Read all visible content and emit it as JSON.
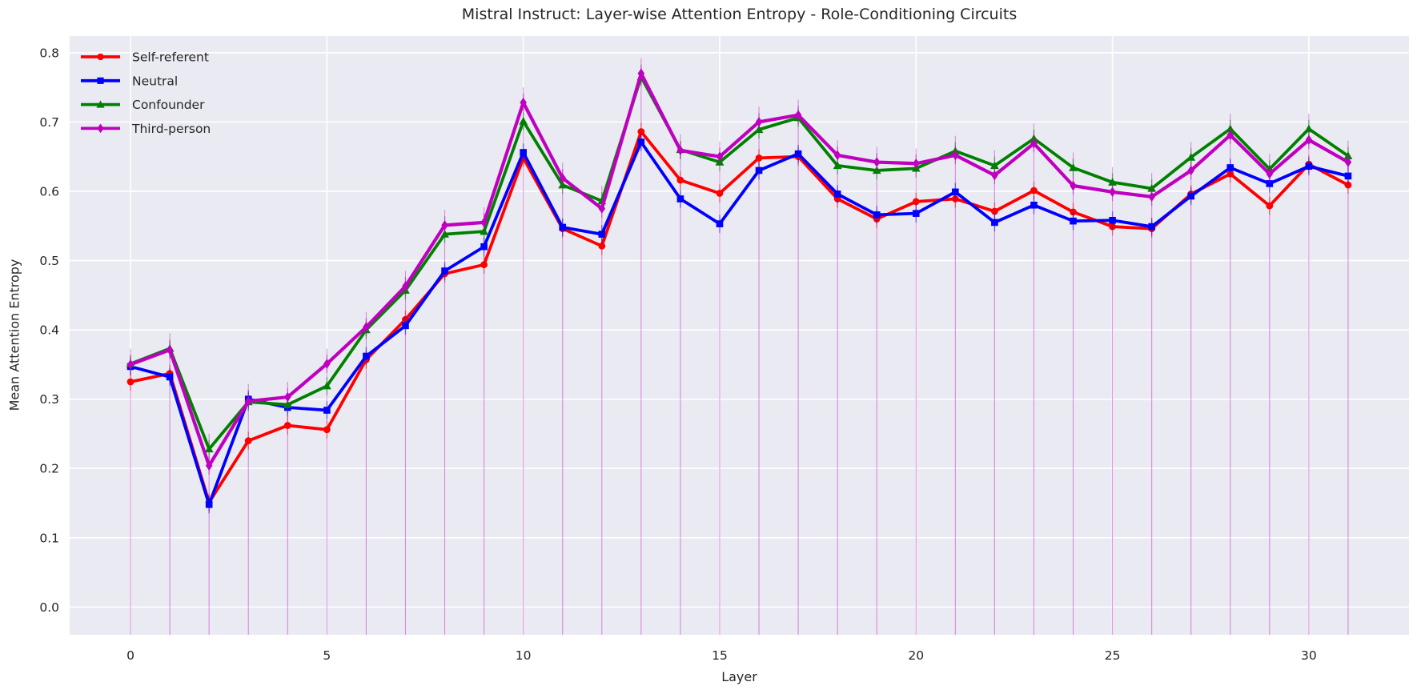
{
  "chart_data": {
    "type": "line",
    "title": "Mistral Instruct: Layer-wise Attention Entropy - Role-Conditioning Circuits",
    "xlabel": "Layer",
    "ylabel": "Mean Attention Entropy",
    "xlim": [
      -1.55,
      32.55
    ],
    "ylim": [
      -0.04,
      0.824
    ],
    "xticks": [
      0,
      5,
      10,
      15,
      20,
      25,
      30
    ],
    "yticks": [
      0.0,
      0.1,
      0.2,
      0.3,
      0.4,
      0.5,
      0.6,
      0.7,
      0.8
    ],
    "grid": true,
    "legend_position": "upper left",
    "x": [
      0,
      1,
      2,
      3,
      4,
      5,
      6,
      7,
      8,
      9,
      10,
      11,
      12,
      13,
      14,
      15,
      16,
      17,
      18,
      19,
      20,
      21,
      22,
      23,
      24,
      25,
      26,
      27,
      28,
      29,
      30,
      31
    ],
    "series": [
      {
        "name": "Self-referent",
        "color": "#ff0000",
        "marker": "circle",
        "line_width": 3.8,
        "values": [
          0.325,
          0.337,
          0.151,
          0.24,
          0.262,
          0.256,
          0.357,
          0.415,
          0.481,
          0.494,
          0.648,
          0.546,
          0.521,
          0.686,
          0.616,
          0.597,
          0.648,
          0.65,
          0.589,
          0.56,
          0.585,
          0.589,
          0.571,
          0.601,
          0.57,
          0.549,
          0.546,
          0.596,
          0.625,
          0.579,
          0.639,
          0.609
        ]
      },
      {
        "name": "Neutral",
        "color": "#0000ff",
        "marker": "square",
        "line_width": 3.8,
        "values": [
          0.347,
          0.332,
          0.148,
          0.3,
          0.288,
          0.284,
          0.362,
          0.406,
          0.485,
          0.52,
          0.656,
          0.548,
          0.538,
          0.671,
          0.589,
          0.553,
          0.63,
          0.654,
          0.596,
          0.566,
          0.568,
          0.599,
          0.555,
          0.58,
          0.557,
          0.558,
          0.549,
          0.593,
          0.634,
          0.611,
          0.636,
          0.622
        ]
      },
      {
        "name": "Confounder",
        "color": "#008000",
        "marker": "triangle",
        "line_width": 3.8,
        "values": [
          0.351,
          0.373,
          0.228,
          0.296,
          0.292,
          0.319,
          0.4,
          0.457,
          0.538,
          0.542,
          0.701,
          0.609,
          0.586,
          0.765,
          0.66,
          0.642,
          0.689,
          0.706,
          0.637,
          0.63,
          0.633,
          0.658,
          0.637,
          0.676,
          0.634,
          0.613,
          0.604,
          0.649,
          0.69,
          0.632,
          0.69,
          0.651
        ]
      },
      {
        "name": "Third-person",
        "color": "#bf00bf",
        "marker": "diamond",
        "line_width": 4.2,
        "values": [
          0.35,
          0.371,
          0.204,
          0.297,
          0.303,
          0.351,
          0.404,
          0.463,
          0.551,
          0.555,
          0.728,
          0.619,
          0.575,
          0.77,
          0.659,
          0.65,
          0.7,
          0.71,
          0.652,
          0.642,
          0.64,
          0.652,
          0.623,
          0.669,
          0.608,
          0.599,
          0.592,
          0.63,
          0.681,
          0.625,
          0.674,
          0.642
        ]
      }
    ],
    "styles": {
      "plot_bg": "#eaeaf2",
      "grid_color": "#ffffff",
      "vline_color": "#bf00bf",
      "vline_opacity": 0.42,
      "errorbar_halfheight": 0.013,
      "text_color": "#262626",
      "tick_font_size": 15.5,
      "legend_font_size": 15.5
    }
  }
}
